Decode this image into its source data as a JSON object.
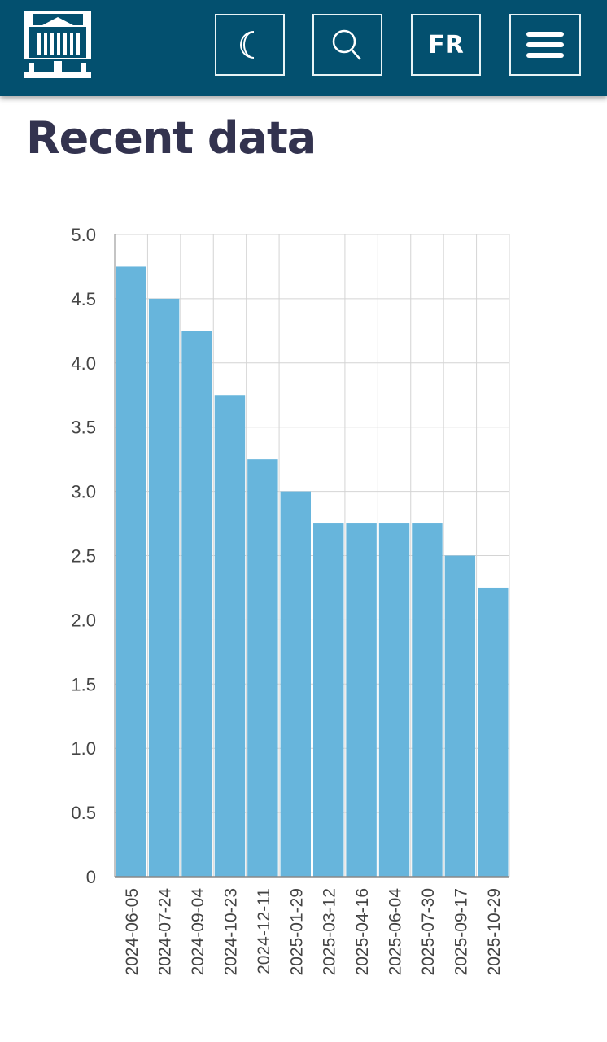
{
  "header": {
    "lang_label": "FR",
    "icons": [
      "bank-logo",
      "moon-icon",
      "search-icon",
      "menu-icon"
    ]
  },
  "page": {
    "title": "Recent data"
  },
  "colors": {
    "header": "#03506f",
    "bar": "#67b5dc",
    "title": "#33334f"
  },
  "chart_data": {
    "type": "bar",
    "title": "",
    "xlabel": "",
    "ylabel": "",
    "categories": [
      "2024-06-05",
      "2024-07-24",
      "2024-09-04",
      "2024-10-23",
      "2024-12-11",
      "2025-01-29",
      "2025-03-12",
      "2025-04-16",
      "2025-06-04",
      "2025-07-30",
      "2025-09-17",
      "2025-10-29"
    ],
    "values": [
      4.75,
      4.5,
      4.25,
      3.75,
      3.25,
      3.0,
      2.75,
      2.75,
      2.75,
      2.75,
      2.5,
      2.25
    ],
    "ylim": [
      0,
      5
    ],
    "yticks": [
      "0",
      "0.5",
      "1.0",
      "1.5",
      "2.0",
      "2.5",
      "3.0",
      "3.5",
      "4.0",
      "4.5",
      "5.0"
    ],
    "grid": true
  }
}
